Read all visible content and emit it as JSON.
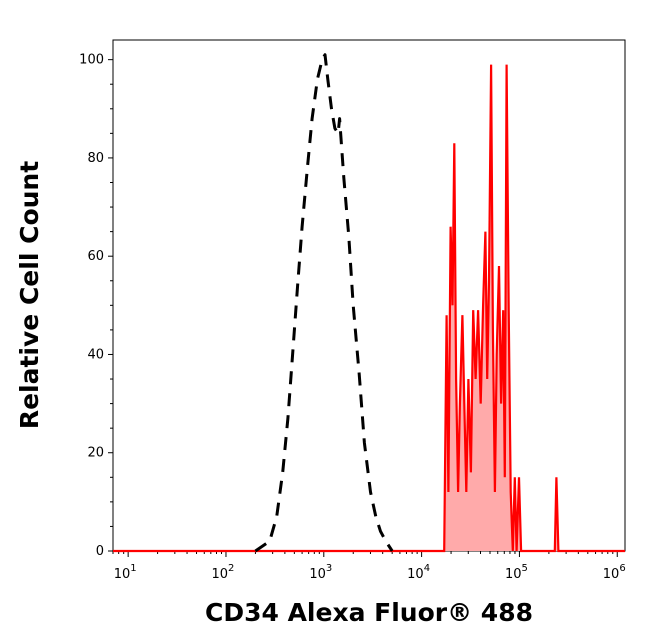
{
  "chart_data": {
    "type": "area",
    "xlabel": "CD34 Alexa Fluor® 488",
    "ylabel": "Relative Cell Count",
    "x_scale": "log",
    "xlim": [
      7,
      1200000
    ],
    "ylim": [
      0,
      104
    ],
    "x_tick_labels": [
      {
        "base": "10",
        "exp": "1",
        "value": 10
      },
      {
        "base": "10",
        "exp": "2",
        "value": 100
      },
      {
        "base": "10",
        "exp": "3",
        "value": 1000
      },
      {
        "base": "10",
        "exp": "4",
        "value": 10000
      },
      {
        "base": "10",
        "exp": "5",
        "value": 100000
      },
      {
        "base": "10",
        "exp": "6",
        "value": 1000000
      }
    ],
    "y_ticks": [
      0,
      20,
      40,
      60,
      80,
      100
    ],
    "series": [
      {
        "style": "dashed black outline",
        "color": "#000000",
        "points": [
          [
            200,
            0
          ],
          [
            280,
            2
          ],
          [
            330,
            7
          ],
          [
            380,
            16
          ],
          [
            430,
            27
          ],
          [
            480,
            40
          ],
          [
            540,
            54
          ],
          [
            600,
            66
          ],
          [
            680,
            78
          ],
          [
            760,
            88
          ],
          [
            860,
            96
          ],
          [
            960,
            100
          ],
          [
            1030,
            101
          ],
          [
            1100,
            96
          ],
          [
            1200,
            90
          ],
          [
            1300,
            86
          ],
          [
            1400,
            85
          ],
          [
            1450,
            88
          ],
          [
            1500,
            84
          ],
          [
            1600,
            76
          ],
          [
            1800,
            64
          ],
          [
            2000,
            50
          ],
          [
            2300,
            36
          ],
          [
            2600,
            22
          ],
          [
            3000,
            12
          ],
          [
            3400,
            7
          ],
          [
            3800,
            4
          ],
          [
            4300,
            2
          ],
          [
            5000,
            0
          ]
        ]
      },
      {
        "style": "filled red histogram",
        "color": "#ff0000",
        "fill": "#ffaaaa",
        "points": [
          [
            7,
            0
          ],
          [
            17000,
            0
          ],
          [
            18000,
            48
          ],
          [
            18800,
            12
          ],
          [
            19800,
            66
          ],
          [
            20700,
            50
          ],
          [
            21600,
            83
          ],
          [
            22500,
            35
          ],
          [
            23600,
            12
          ],
          [
            24600,
            30
          ],
          [
            26100,
            48
          ],
          [
            27300,
            30
          ],
          [
            28600,
            12
          ],
          [
            30100,
            35
          ],
          [
            31900,
            16
          ],
          [
            33700,
            49
          ],
          [
            35600,
            35
          ],
          [
            37800,
            49
          ],
          [
            40200,
            30
          ],
          [
            42500,
            50
          ],
          [
            44900,
            65
          ],
          [
            46800,
            35
          ],
          [
            48900,
            55
          ],
          [
            51300,
            99
          ],
          [
            53600,
            45
          ],
          [
            56100,
            12
          ],
          [
            58600,
            40
          ],
          [
            61800,
            58
          ],
          [
            65000,
            30
          ],
          [
            68300,
            49
          ],
          [
            70800,
            15
          ],
          [
            74000,
            99
          ],
          [
            77700,
            49
          ],
          [
            81400,
            12
          ],
          [
            85500,
            0
          ],
          [
            89700,
            15
          ],
          [
            93600,
            0
          ],
          [
            98900,
            15
          ],
          [
            104000,
            0
          ],
          [
            230000,
            0
          ],
          [
            239000,
            15
          ],
          [
            250000,
            0
          ],
          [
            1200000,
            0
          ]
        ]
      }
    ]
  }
}
